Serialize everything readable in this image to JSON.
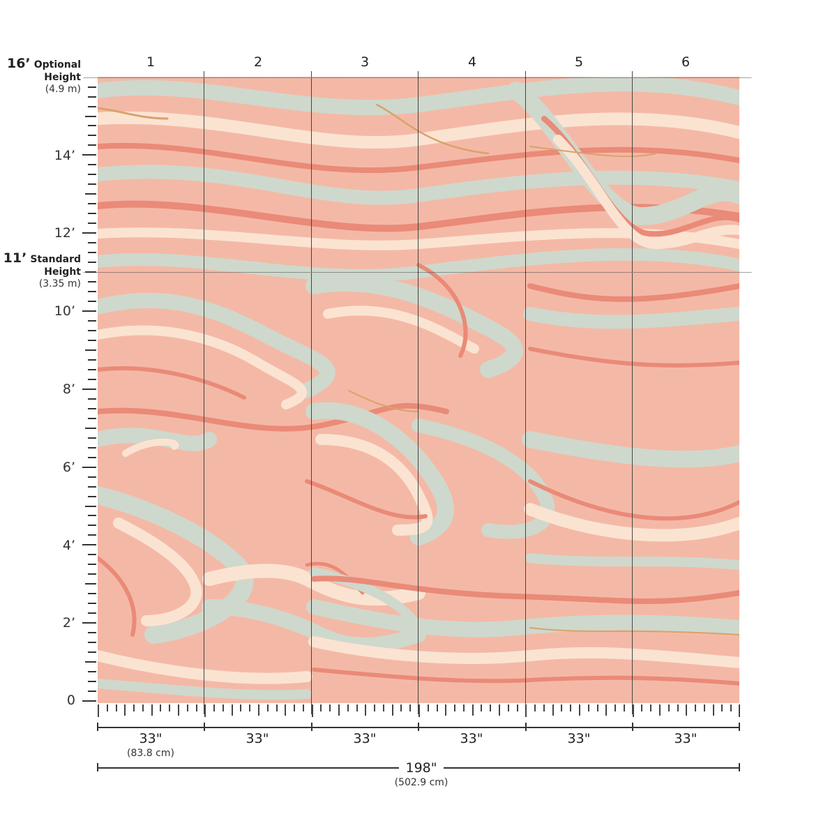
{
  "diagram": {
    "type": "wallpaper mural dimension diagram",
    "pattern": "peach marbled swirl",
    "colors": {
      "base_peach": "#f4b9a6",
      "coral": "#ea8a78",
      "mint_gray": "#cfd8cc",
      "cream": "#fbe3d2",
      "gold": "#d9a26a",
      "line": "#333333"
    }
  },
  "panels": [
    {
      "number": "1",
      "width_label": "33\"",
      "width_metric": "(83.8 cm)"
    },
    {
      "number": "2",
      "width_label": "33\""
    },
    {
      "number": "3",
      "width_label": "33\""
    },
    {
      "number": "4",
      "width_label": "33\""
    },
    {
      "number": "5",
      "width_label": "33\""
    },
    {
      "number": "6",
      "width_label": "33\""
    }
  ],
  "heights": {
    "optional": {
      "value": "16’",
      "label1": "Optional",
      "label2": "Height",
      "metric": "(4.9 m)"
    },
    "standard": {
      "value": "11’",
      "label1": "Standard",
      "label2": "Height",
      "metric": "(3.35 m)"
    }
  },
  "vertical_ruler": {
    "labels": [
      "14’",
      "12’",
      "10’",
      "8’",
      "6’",
      "4’",
      "2’",
      "0"
    ]
  },
  "total_width": {
    "label": "198\"",
    "metric": "(502.9 cm)"
  }
}
